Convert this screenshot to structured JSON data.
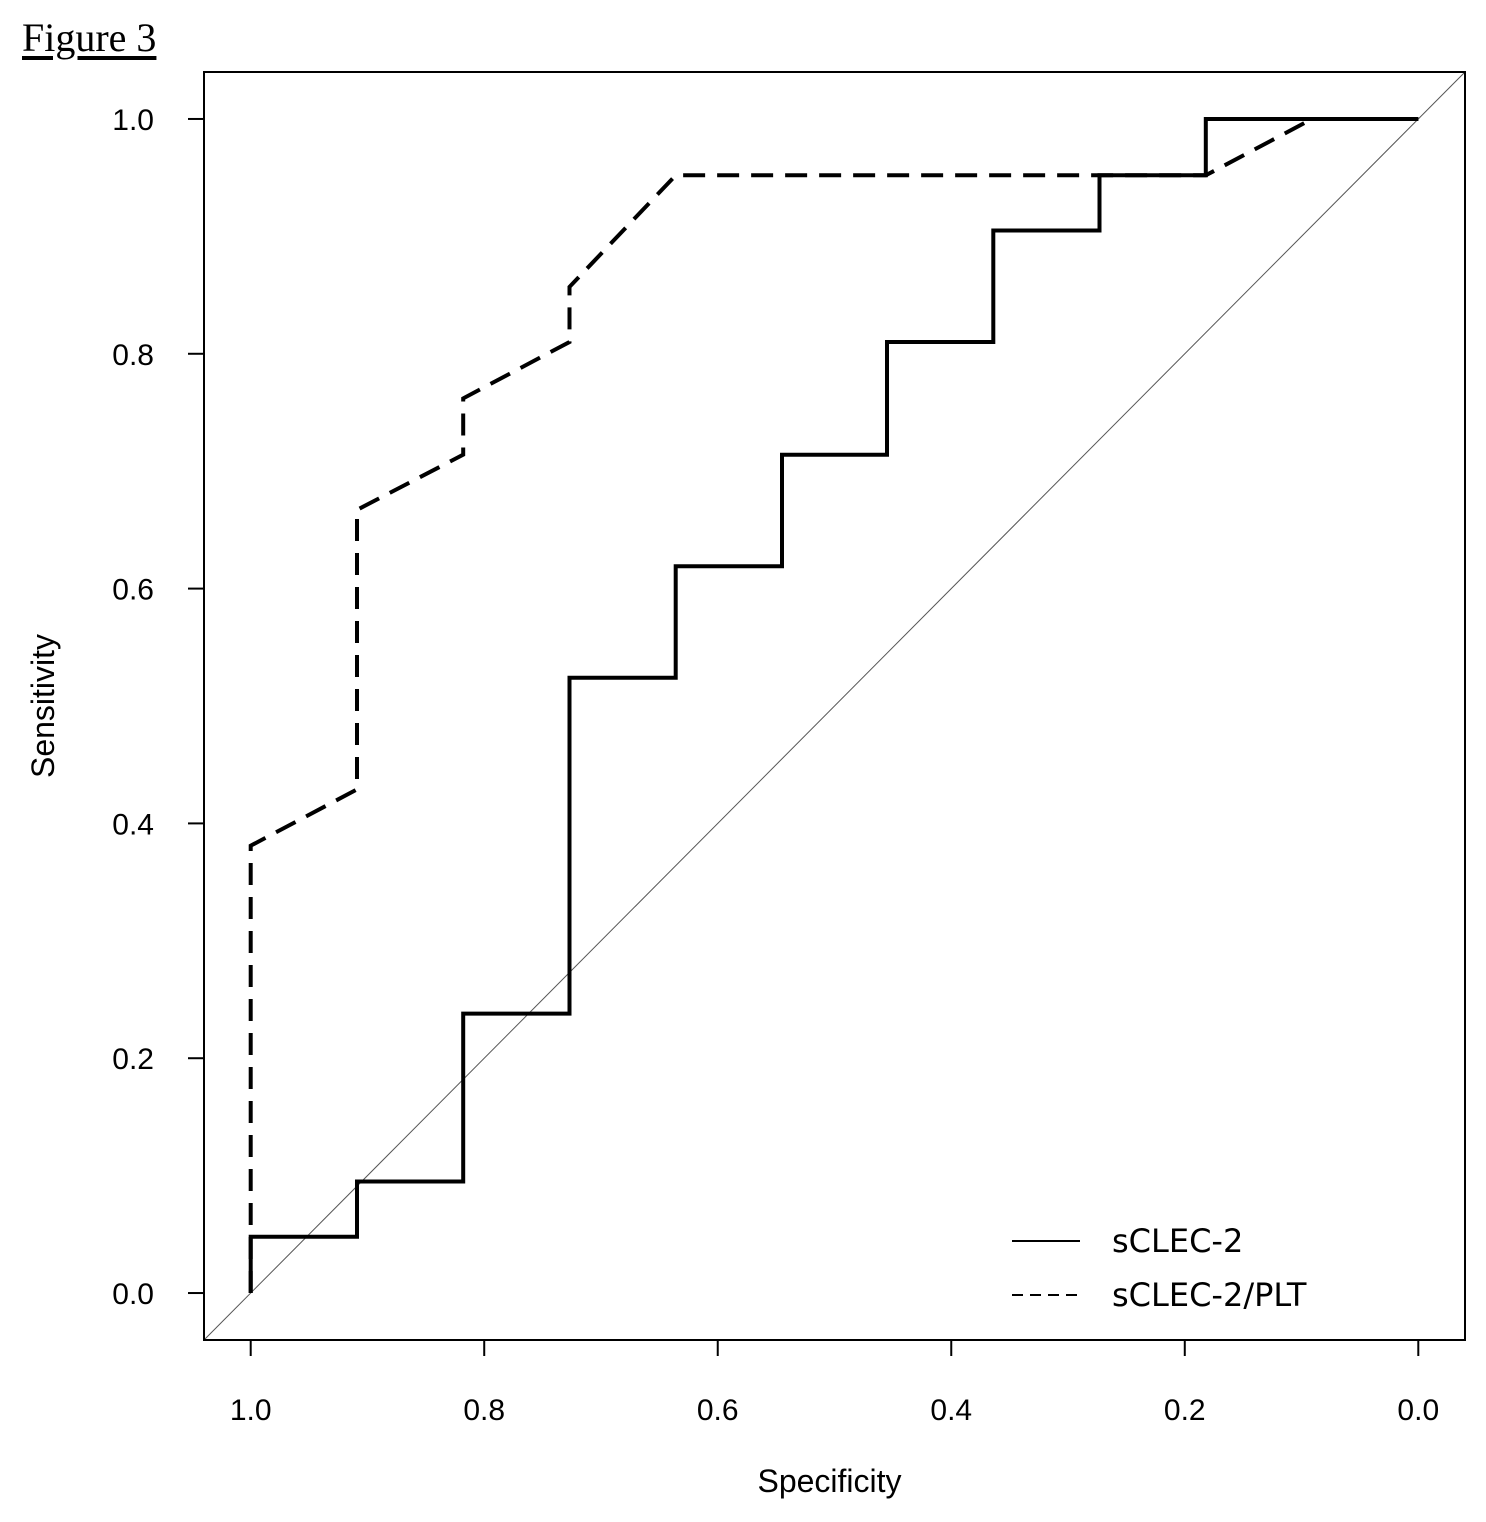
{
  "figure_label": "Figure 3",
  "chart_data": {
    "type": "line",
    "title": "",
    "xlabel": "Specificity",
    "ylabel": "Sensitivity",
    "xlim": [
      1.04,
      -0.04
    ],
    "ylim": [
      -0.04,
      1.04
    ],
    "x_reversed": true,
    "x_ticks": [
      1.0,
      0.8,
      0.6,
      0.4,
      0.2,
      0.0
    ],
    "x_tick_labels": [
      "1.0",
      "0.8",
      "0.6",
      "0.4",
      "0.2",
      "0.0"
    ],
    "y_ticks": [
      0.0,
      0.2,
      0.4,
      0.6,
      0.8,
      1.0
    ],
    "y_tick_labels": [
      "0.0",
      "0.2",
      "0.4",
      "0.6",
      "0.8",
      "1.0"
    ],
    "grid": false,
    "legend_position": "bottom-right",
    "reference_line": {
      "from": [
        1.0,
        0.0
      ],
      "to": [
        0.0,
        1.0
      ],
      "style": "thin-gray"
    },
    "series": [
      {
        "name": "sCLEC-2",
        "style": "solid",
        "color": "#000000",
        "points": [
          [
            1.0,
            0.0
          ],
          [
            1.0,
            0.048
          ],
          [
            0.909,
            0.048
          ],
          [
            0.909,
            0.095
          ],
          [
            0.818,
            0.095
          ],
          [
            0.818,
            0.238
          ],
          [
            0.727,
            0.238
          ],
          [
            0.727,
            0.524
          ],
          [
            0.636,
            0.524
          ],
          [
            0.636,
            0.619
          ],
          [
            0.545,
            0.619
          ],
          [
            0.545,
            0.714
          ],
          [
            0.455,
            0.714
          ],
          [
            0.455,
            0.81
          ],
          [
            0.364,
            0.81
          ],
          [
            0.364,
            0.905
          ],
          [
            0.273,
            0.905
          ],
          [
            0.273,
            0.952
          ],
          [
            0.182,
            0.952
          ],
          [
            0.182,
            1.0
          ],
          [
            0.0,
            1.0
          ]
        ]
      },
      {
        "name": "sCLEC-2/PLT",
        "style": "dashed",
        "color": "#000000",
        "points": [
          [
            1.0,
            0.0
          ],
          [
            1.0,
            0.381
          ],
          [
            0.909,
            0.429
          ],
          [
            0.909,
            0.667
          ],
          [
            0.818,
            0.714
          ],
          [
            0.818,
            0.762
          ],
          [
            0.727,
            0.81
          ],
          [
            0.727,
            0.857
          ],
          [
            0.636,
            0.952
          ],
          [
            0.182,
            0.952
          ],
          [
            0.091,
            1.0
          ],
          [
            0.0,
            1.0
          ]
        ]
      }
    ]
  }
}
